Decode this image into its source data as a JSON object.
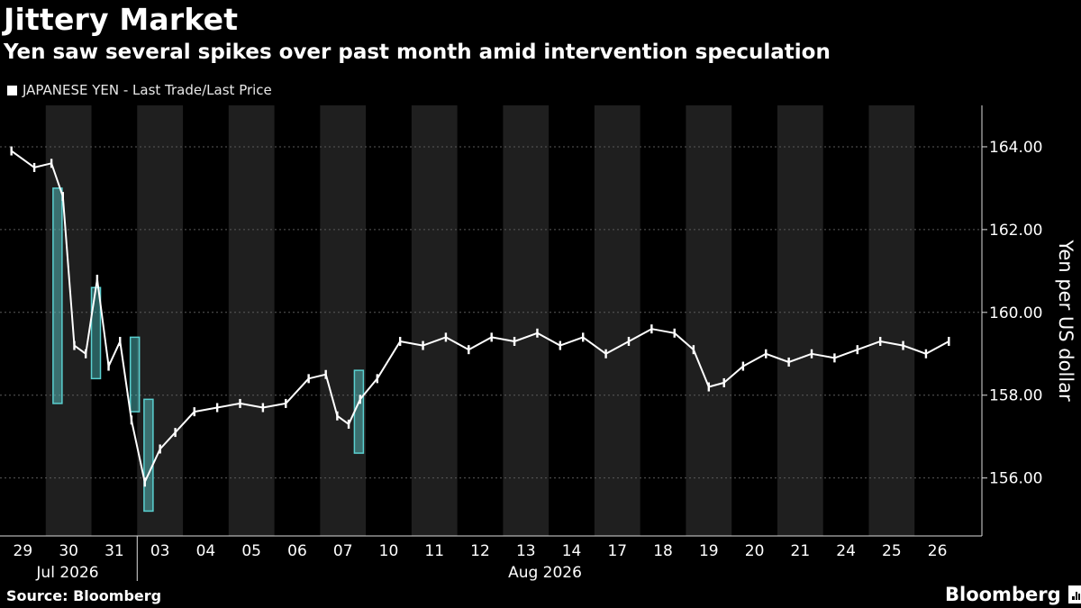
{
  "chart_data": {
    "type": "line",
    "title": "Jittery Market",
    "subtitle": "Yen saw several spikes over past month amid intervention speculation",
    "series": [
      {
        "name": "JAPANESE YEN - Last Trade/Last Price",
        "color": "#ffffff",
        "x": [
          "29",
          "29",
          "30",
          "30",
          "30",
          "30",
          "31",
          "31",
          "31",
          "31",
          "03",
          "03",
          "03",
          "04",
          "04",
          "05",
          "05",
          "06",
          "06",
          "07",
          "07",
          "07",
          "07",
          "10",
          "10",
          "11",
          "11",
          "12",
          "12",
          "13",
          "13",
          "14",
          "14",
          "17",
          "17",
          "18",
          "18",
          "19",
          "19",
          "19",
          "20",
          "20",
          "21",
          "21",
          "24",
          "24",
          "25",
          "25",
          "26",
          "26"
        ],
        "values": [
          163.9,
          163.5,
          163.6,
          162.8,
          159.2,
          159.0,
          160.8,
          158.7,
          159.3,
          157.4,
          155.9,
          156.7,
          157.1,
          157.6,
          157.7,
          157.8,
          157.7,
          157.8,
          158.4,
          158.5,
          157.5,
          157.3,
          157.9,
          158.4,
          159.3,
          159.2,
          159.4,
          159.1,
          159.4,
          159.3,
          159.5,
          159.2,
          159.4,
          159.0,
          159.3,
          159.6,
          159.5,
          159.1,
          158.2,
          158.3,
          158.7,
          159.0,
          158.8,
          159.0,
          158.9,
          159.1,
          159.3,
          159.2,
          159.0,
          159.3
        ]
      }
    ],
    "categories": [
      "29",
      "30",
      "31",
      "03",
      "04",
      "05",
      "06",
      "07",
      "10",
      "11",
      "12",
      "13",
      "14",
      "17",
      "18",
      "19",
      "20",
      "21",
      "24",
      "25",
      "26"
    ],
    "month_labels": [
      "Jul 2026",
      "Aug 2026"
    ],
    "yticks": [
      "156.00",
      "158.00",
      "160.00",
      "162.00",
      "164.00"
    ],
    "ylabel": "Yen per US dollar",
    "ylim": [
      154.6,
      165.0
    ],
    "highlight_spikes": [
      {
        "day": "30",
        "top": 163.0,
        "bottom": 157.8
      },
      {
        "day": "31",
        "top": 160.6,
        "bottom": 158.4
      },
      {
        "day": "31",
        "top": 159.4,
        "bottom": 157.6
      },
      {
        "day": "03",
        "top": 157.9,
        "bottom": 155.2
      },
      {
        "day": "07",
        "top": 158.6,
        "bottom": 156.6
      }
    ],
    "highlight_color": "#5ad0d0",
    "grid": true,
    "legend_placement": "top-left"
  },
  "footer": {
    "source": "Source: Bloomberg",
    "brand": "Bloomberg"
  }
}
